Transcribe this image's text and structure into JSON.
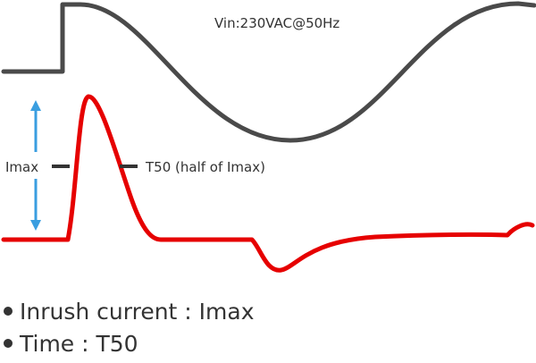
{
  "diagram": {
    "voltage_label": "Vin:230VAC@50Hz",
    "imax_label": "Imax",
    "t50_label": "T50 (half of Imax)",
    "colors": {
      "voltage_wave": "#4a4a4a",
      "current_wave": "#e60000",
      "arrow": "#3a9ee0",
      "text": "#333333"
    }
  },
  "bullets": [
    {
      "text": "Inrush current : Imax"
    },
    {
      "text": "Time : T50"
    }
  ]
}
